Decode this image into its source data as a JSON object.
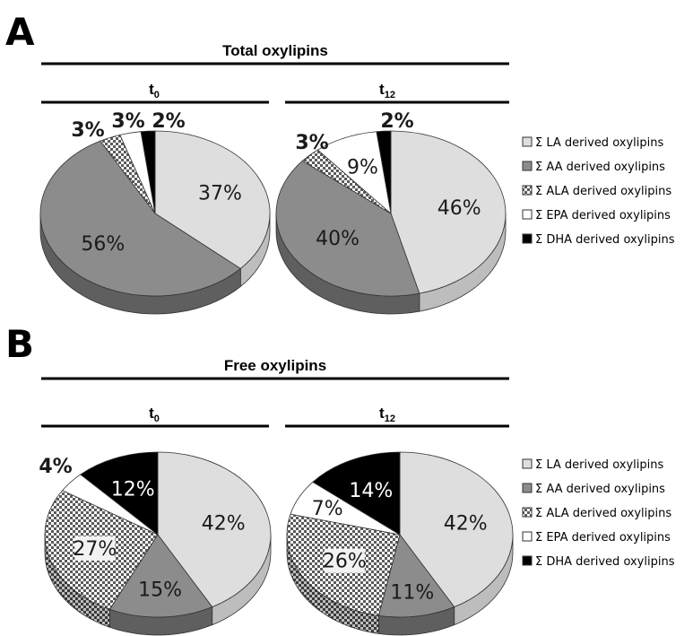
{
  "panels": [
    {
      "letter": "A",
      "title": "Total oxylipins",
      "legend": [
        "Σ LA derived oxylipins",
        "Σ AA derived oxylipins",
        "Σ ALA derived oxylipins",
        "Σ EPA derived oxylipins",
        "Σ DHA derived oxylipins"
      ]
    },
    {
      "letter": "B",
      "title": "Free oxylipins",
      "legend": [
        "Σ LA derived oxylipins",
        "Σ AA derived oxylipins",
        "Σ ALA derived oxylipins",
        "Σ EPA derived oxylipins",
        "Σ DHA derived oxylipins"
      ]
    }
  ],
  "chart_data": [
    {
      "type": "pie",
      "panel": "A",
      "title": "t0",
      "title_main": "t",
      "title_sub": "0",
      "categories": [
        "Σ LA derived oxylipins",
        "Σ AA derived oxylipins",
        "Σ ALA derived oxylipins",
        "Σ EPA derived oxylipins",
        "Σ DHA derived oxylipins"
      ],
      "values": [
        37,
        56,
        3,
        3,
        2
      ],
      "labels": [
        "37%",
        "56%",
        "3%",
        "3%",
        "2%"
      ]
    },
    {
      "type": "pie",
      "panel": "A",
      "title": "t12",
      "title_main": "t",
      "title_sub": "12",
      "categories": [
        "Σ LA derived oxylipins",
        "Σ AA derived oxylipins",
        "Σ ALA derived oxylipins",
        "Σ EPA derived oxylipins",
        "Σ DHA derived oxylipins"
      ],
      "values": [
        46,
        40,
        3,
        9,
        2
      ],
      "labels": [
        "46%",
        "40%",
        "3%",
        "9%",
        "2%"
      ]
    },
    {
      "type": "pie",
      "panel": "B",
      "title": "t0",
      "title_main": "t",
      "title_sub": "0",
      "categories": [
        "Σ LA derived oxylipins",
        "Σ AA derived oxylipins",
        "Σ ALA derived oxylipins",
        "Σ EPA derived oxylipins",
        "Σ DHA derived oxylipins"
      ],
      "values": [
        42,
        15,
        27,
        4,
        12
      ],
      "labels": [
        "42%",
        "15%",
        "27%",
        "4%",
        "12%"
      ]
    },
    {
      "type": "pie",
      "panel": "B",
      "title": "t12",
      "title_main": "t",
      "title_sub": "12",
      "categories": [
        "Σ LA derived oxylipins",
        "Σ AA derived oxylipins",
        "Σ ALA derived oxylipins",
        "Σ EPA derived oxylipins",
        "Σ DHA derived oxylipins"
      ],
      "values": [
        42,
        11,
        26,
        7,
        14
      ],
      "labels": [
        "42%",
        "11%",
        "26%",
        "7%",
        "14%"
      ]
    }
  ],
  "colors": {
    "LA": "#dedede",
    "AA": "#8c8c8c",
    "ALA": "checkered",
    "EPA": "#ffffff",
    "DHA": "#000000"
  }
}
